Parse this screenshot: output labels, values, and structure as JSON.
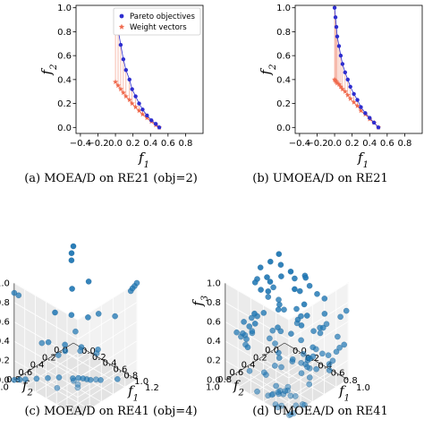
{
  "chart_data": [
    {
      "type": "line",
      "panel": "a",
      "caption": "(a) MOEA/D on RE21 (obj=2)",
      "xlabel": "f1",
      "ylabel": "f2",
      "xlim": [
        -0.45,
        1.0
      ],
      "ylim": [
        -0.05,
        1.02
      ],
      "xticks": [
        "−0.4",
        "−0.2",
        "0.0",
        "0.2",
        "0.4",
        "0.6",
        "0.8"
      ],
      "yticks": [
        "0.0",
        "0.2",
        "0.4",
        "0.6",
        "0.8",
        "1.0"
      ],
      "legend": {
        "placement": "top-right",
        "entries": [
          "Pareto objectives",
          "Weight vectors"
        ]
      },
      "series": [
        {
          "name": "Pareto objectives",
          "color": "#2e2ecf",
          "x": [
            0.0,
            0.03,
            0.06,
            0.09,
            0.12,
            0.16,
            0.19,
            0.23,
            0.27,
            0.31,
            0.36,
            0.41,
            0.46,
            0.5
          ],
          "y": [
            0.98,
            0.82,
            0.69,
            0.57,
            0.48,
            0.4,
            0.32,
            0.26,
            0.2,
            0.15,
            0.1,
            0.06,
            0.03,
            0.0
          ]
        },
        {
          "name": "Weight vectors",
          "color": "#f06b4f",
          "x": [
            0.0,
            0.03,
            0.06,
            0.09,
            0.12,
            0.16,
            0.19,
            0.23,
            0.27,
            0.31,
            0.36,
            0.41,
            0.46,
            0.5
          ],
          "y": [
            0.38,
            0.35,
            0.32,
            0.29,
            0.26,
            0.23,
            0.2,
            0.17,
            0.14,
            0.11,
            0.08,
            0.05,
            0.02,
            0.0
          ]
        }
      ]
    },
    {
      "type": "line",
      "panel": "b",
      "caption": "(b) UMOEA/D on RE21",
      "xlabel": "f1",
      "ylabel": "f2",
      "xlim": [
        -0.45,
        1.0
      ],
      "ylim": [
        -0.05,
        1.02
      ],
      "xticks": [
        "−0.4",
        "−0.2",
        "0.0",
        "0.2",
        "0.4",
        "0.6",
        "0.8"
      ],
      "yticks": [
        "0.0",
        "0.2",
        "0.4",
        "0.6",
        "0.8",
        "1.0"
      ],
      "series": [
        {
          "name": "Pareto objectives",
          "color": "#2e2ecf",
          "x": [
            0.0,
            0.01,
            0.02,
            0.03,
            0.05,
            0.07,
            0.09,
            0.12,
            0.15,
            0.18,
            0.22,
            0.26,
            0.3,
            0.35,
            0.4,
            0.45,
            0.5
          ],
          "y": [
            1.0,
            0.92,
            0.84,
            0.76,
            0.68,
            0.6,
            0.53,
            0.46,
            0.4,
            0.34,
            0.28,
            0.23,
            0.17,
            0.12,
            0.08,
            0.04,
            0.0
          ]
        },
        {
          "name": "Weight vectors",
          "color": "#f06b4f",
          "x": [
            0.0,
            0.01,
            0.02,
            0.03,
            0.05,
            0.07,
            0.09,
            0.12,
            0.15,
            0.18,
            0.22,
            0.26,
            0.3,
            0.35,
            0.4,
            0.45,
            0.5
          ],
          "y": [
            0.4,
            0.39,
            0.38,
            0.37,
            0.36,
            0.34,
            0.32,
            0.3,
            0.27,
            0.24,
            0.21,
            0.18,
            0.14,
            0.11,
            0.07,
            0.04,
            0.0
          ]
        }
      ]
    },
    {
      "type": "scatter",
      "panel": "c",
      "caption": "(c) MOEA/D on RE41 (obj=4)",
      "xlabel": "f1",
      "ylabel": "f2",
      "zlabel": "f3",
      "xticks": [
        "0.0",
        "0.2",
        "0.4",
        "0.6",
        "0.8",
        "1.0",
        "1.2"
      ],
      "yticks": [
        "0.0",
        "0.2",
        "0.4",
        "0.6",
        "0.8",
        "1.0"
      ],
      "zticks": [
        "0.0",
        "0.2",
        "0.4",
        "0.6",
        "0.8",
        "1.0"
      ],
      "color": "#1f77b4",
      "points": [
        [
          1.2,
          0.0,
          1.0
        ],
        [
          1.18,
          0.02,
          0.97
        ],
        [
          1.15,
          0.03,
          0.94
        ],
        [
          1.13,
          0.04,
          0.91
        ],
        [
          0.0,
          0.0,
          1.0
        ],
        [
          0.0,
          0.03,
          0.94
        ],
        [
          0.02,
          0.05,
          0.88
        ],
        [
          1.2,
          1.0,
          0.3
        ],
        [
          1.18,
          0.98,
          0.32
        ],
        [
          0.0,
          1.0,
          0.9
        ],
        [
          0.05,
          0.97,
          0.88
        ],
        [
          0.0,
          1.0,
          0.0
        ],
        [
          0.05,
          0.95,
          0.0
        ],
        [
          0.1,
          0.9,
          0.0
        ],
        [
          0.55,
          0.5,
          0.0
        ],
        [
          0.6,
          0.45,
          0.0
        ],
        [
          0.65,
          0.42,
          0.0
        ],
        [
          0.7,
          0.4,
          0.0
        ],
        [
          0.75,
          0.38,
          0.0
        ],
        [
          0.2,
          0.8,
          0.0
        ],
        [
          0.3,
          0.7,
          0.0
        ],
        [
          0.4,
          0.6,
          0.0
        ],
        [
          0.85,
          0.3,
          0.0
        ],
        [
          1.0,
          0.15,
          0.0
        ],
        [
          0.2,
          0.6,
          0.3
        ],
        [
          0.4,
          0.5,
          0.3
        ],
        [
          0.6,
          0.4,
          0.3
        ],
        [
          0.8,
          0.3,
          0.3
        ],
        [
          0.3,
          0.3,
          0.5
        ],
        [
          0.5,
          0.2,
          0.5
        ],
        [
          0.7,
          0.2,
          0.6
        ],
        [
          0.9,
          0.1,
          0.6
        ],
        [
          0.2,
          0.2,
          0.7
        ],
        [
          0.4,
          0.1,
          0.8
        ],
        [
          0.6,
          0.5,
          0.5
        ],
        [
          0.8,
          0.6,
          0.4
        ],
        [
          1.0,
          0.5,
          0.4
        ],
        [
          0.1,
          0.4,
          0.5
        ],
        [
          0.3,
          0.8,
          0.4
        ],
        [
          0.5,
          0.7,
          0.3
        ],
        [
          0.9,
          0.8,
          0.2
        ],
        [
          1.1,
          0.6,
          0.2
        ],
        [
          0.7,
          0.9,
          0.1
        ],
        [
          0.35,
          0.45,
          0.2
        ]
      ]
    },
    {
      "type": "scatter",
      "panel": "d",
      "caption": "(d) UMOEA/D on RE41",
      "xlabel": "f1",
      "ylabel": "f2",
      "zlabel": "f3",
      "xticks": [
        "0.0",
        "0.2",
        "0.4",
        "0.6",
        "0.8",
        "1.0"
      ],
      "yticks": [
        "0.0",
        "0.2",
        "0.4",
        "0.6",
        "0.8",
        "1.0"
      ],
      "zticks": [
        "0.0",
        "0.2",
        "0.4",
        "0.6",
        "0.8",
        "1.0"
      ],
      "color": "#1f77b4"
    }
  ]
}
